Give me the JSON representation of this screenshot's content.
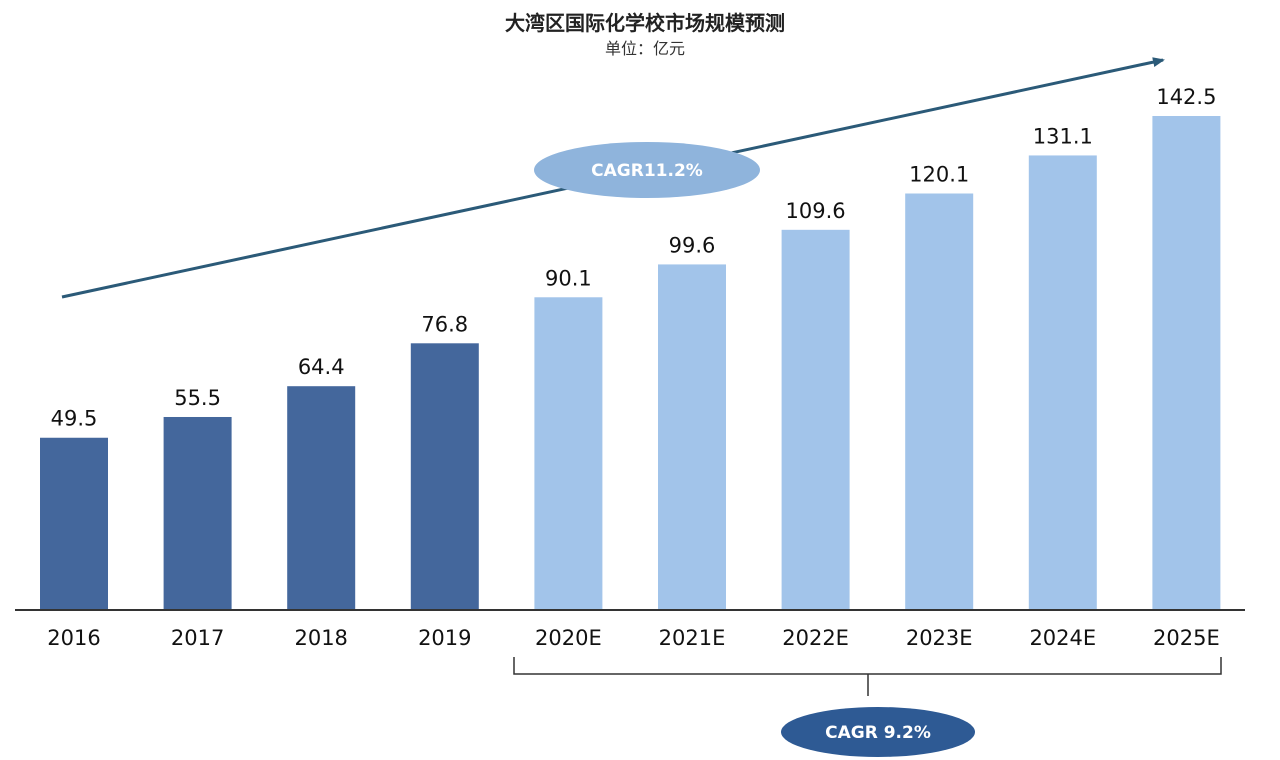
{
  "chart_data": {
    "type": "bar",
    "title": "大湾区国际化学校市场规模预测",
    "subtitle": "单位：亿元",
    "categories": [
      "2016",
      "2017",
      "2018",
      "2019",
      "2020E",
      "2021E",
      "2022E",
      "2023E",
      "2024E",
      "2025E"
    ],
    "values": [
      49.5,
      55.5,
      64.4,
      76.8,
      90.1,
      99.6,
      109.6,
      120.1,
      131.1,
      142.5
    ],
    "actual_count": 4,
    "ylim": [
      0,
      142.5
    ],
    "grid": false,
    "xlabel": "",
    "ylabel": "",
    "annotations": {
      "trend_cagr": "CAGR11.2%",
      "forecast_cagr": "CAGR 9.2%"
    },
    "colors": {
      "actual": "#44679c",
      "forecast": "#a2c4ea",
      "trend_arrow": "#2b5a78",
      "trend_badge": "#8fb4dc",
      "forecast_badge": "#2e5a94",
      "axis": "#333333"
    }
  }
}
